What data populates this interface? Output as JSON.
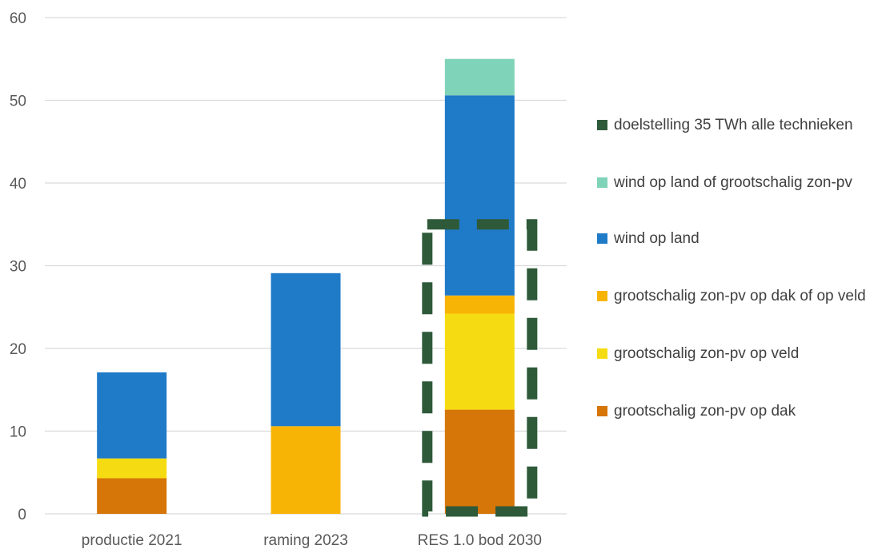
{
  "chart_data": {
    "type": "bar",
    "stacked": true,
    "categories": [
      "productie 2021",
      "raming 2023",
      "RES 1.0 bod 2030"
    ],
    "ylim": [
      0,
      60
    ],
    "yticks": [
      "0",
      "10",
      "20",
      "30",
      "40",
      "50",
      "60"
    ],
    "grid": true,
    "legend_position": "right",
    "series": [
      {
        "name": "grootschalig zon-pv op dak",
        "color": "#D67508",
        "values": [
          4.3,
          0,
          12.6
        ]
      },
      {
        "name": "grootschalig zon-pv op veld",
        "color": "#F5DC12",
        "values": [
          2.4,
          0,
          11.6
        ]
      },
      {
        "name": "grootschalig zon-pv op dak of op veld",
        "color": "#F8B404",
        "values": [
          0,
          10.6,
          2.2
        ]
      },
      {
        "name": "wind op land",
        "color": "#1F7AC8",
        "values": [
          10.4,
          18.5,
          24.2
        ]
      },
      {
        "name": "wind op land of grootschalig zon-pv",
        "color": "#7FD3B8",
        "values": [
          0,
          0,
          4.4
        ]
      }
    ],
    "target": {
      "name": "doelstelling 35 TWh alle technieken",
      "value": 35,
      "category": "RES 1.0 bod 2030",
      "color": "#2E5A3A",
      "style": "dashed outline"
    },
    "legend_order": [
      "doelstelling 35 TWh alle technieken",
      "wind op land of grootschalig zon-pv",
      "wind op land",
      "grootschalig zon-pv op dak of op veld",
      "grootschalig zon-pv op veld",
      "grootschalig zon-pv op dak"
    ]
  },
  "legend": {
    "items": [
      {
        "label": "doelstelling 35 TWh alle technieken",
        "color": "#2E5A3A"
      },
      {
        "label": "wind op land of grootschalig zon-pv",
        "color": "#7FD3B8"
      },
      {
        "label": "wind op land",
        "color": "#1F7AC8"
      },
      {
        "label": "grootschalig zon-pv op dak of op veld",
        "color": "#F8B404"
      },
      {
        "label": "grootschalig zon-pv op veld",
        "color": "#F5DC12"
      },
      {
        "label": "grootschalig zon-pv op dak",
        "color": "#D67508"
      }
    ]
  }
}
